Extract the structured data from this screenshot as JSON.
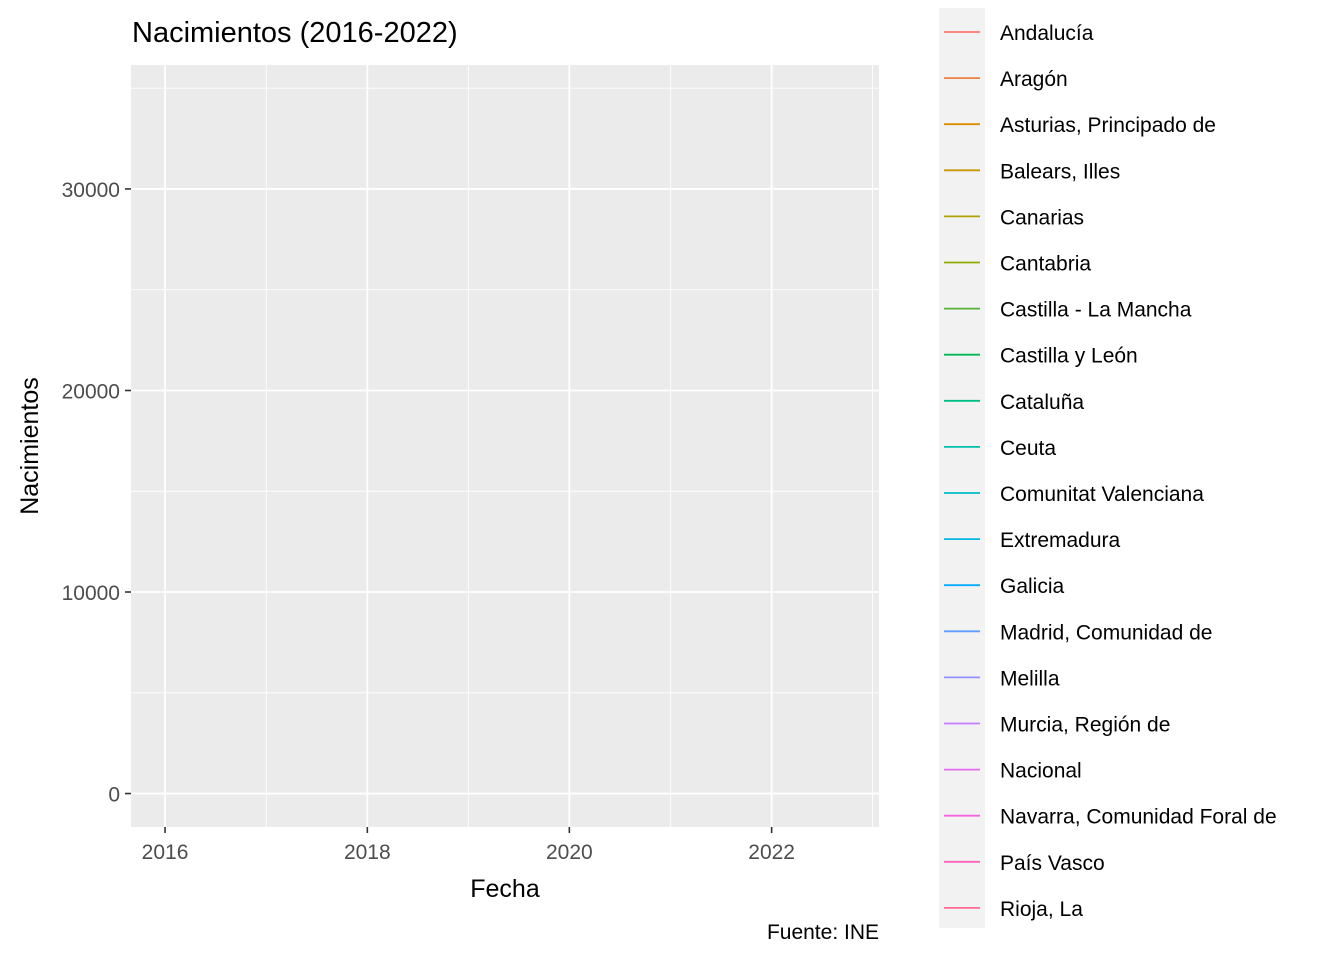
{
  "chart_data": {
    "type": "line",
    "title": "Nacimientos (2016-2022)",
    "xlabel": "Fecha",
    "ylabel": "Nacimientos",
    "caption": "Fuente: INE",
    "x_ticks": [
      "2016",
      "2018",
      "2020",
      "2022"
    ],
    "y_ticks": [
      0,
      10000,
      20000,
      30000
    ],
    "xlim": [
      "2015-08-31",
      "2023-01-24"
    ],
    "ylim": [
      -1660,
      36150
    ],
    "grid": true,
    "legend_placement": "right",
    "series": [
      {
        "name": "Andalucía",
        "color": "#F8766D",
        "values": []
      },
      {
        "name": "Aragón",
        "color": "#EE8044",
        "values": []
      },
      {
        "name": "Asturias, Principado de",
        "color": "#DE8C00",
        "values": []
      },
      {
        "name": "Balears, Illes",
        "color": "#C99800",
        "values": []
      },
      {
        "name": "Canarias",
        "color": "#AFA100",
        "values": []
      },
      {
        "name": "Cantabria",
        "color": "#8EAB00",
        "values": []
      },
      {
        "name": "Castilla - La Mancha",
        "color": "#56B33B",
        "values": []
      },
      {
        "name": "Castilla y León",
        "color": "#00B850",
        "values": []
      },
      {
        "name": "Cataluña",
        "color": "#00BC86",
        "values": []
      },
      {
        "name": "Ceuta",
        "color": "#00BFA8",
        "values": []
      },
      {
        "name": "Comunitat Valenciana",
        "color": "#00BDC6",
        "values": []
      },
      {
        "name": "Extremadura",
        "color": "#00B8E2",
        "values": []
      },
      {
        "name": "Galicia",
        "color": "#00ADFA",
        "values": []
      },
      {
        "name": "Madrid, Comunidad de",
        "color": "#619CFF",
        "values": []
      },
      {
        "name": "Melilla",
        "color": "#9590FF",
        "values": []
      },
      {
        "name": "Murcia, Región de",
        "color": "#C77CFF",
        "values": []
      },
      {
        "name": "Nacional",
        "color": "#E76BF3",
        "values": []
      },
      {
        "name": "Navarra, Comunidad Foral de",
        "color": "#F564E3",
        "values": []
      },
      {
        "name": "País Vasco",
        "color": "#FF62BC",
        "values": []
      },
      {
        "name": "Rioja, La",
        "color": "#FF6C91",
        "values": []
      }
    ]
  }
}
